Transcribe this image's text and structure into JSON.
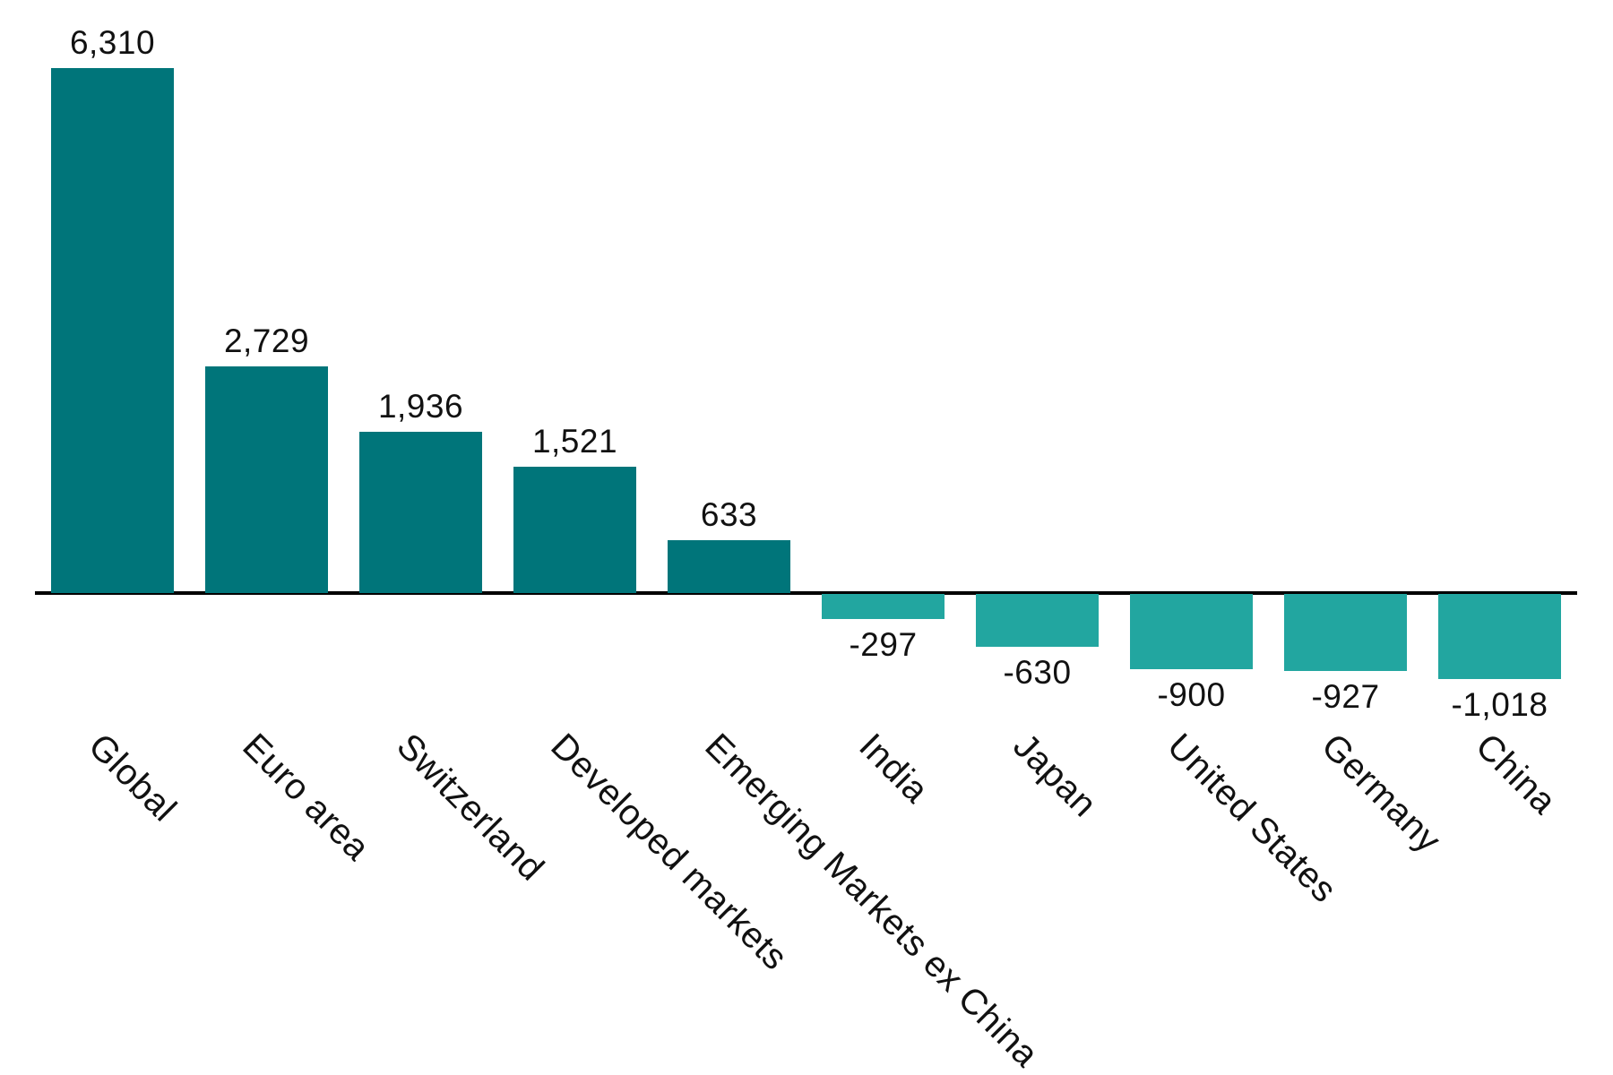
{
  "chart_data": {
    "type": "bar",
    "title": "",
    "xlabel": "",
    "ylabel": "",
    "categories": [
      "Global",
      "Euro area",
      "Switzerland",
      "Developed markets",
      "Emerging Markets ex China",
      "India",
      "Japan",
      "United States",
      "Germany",
      "China"
    ],
    "values": [
      6310,
      2729,
      1936,
      1521,
      633,
      -297,
      -630,
      -900,
      -927,
      -1018
    ],
    "value_labels": [
      "6,310",
      "2,729",
      "1,936",
      "1,521",
      "633",
      "-297",
      "-630",
      "-900",
      "-927",
      "-1,018"
    ],
    "ylim": [
      -1100,
      6500
    ],
    "grid": false,
    "legend": false,
    "category_label_rotation_deg": 45,
    "colors": {
      "bar_positive": "#00757A",
      "bar_negative": "#22A6A0",
      "axis_line": "#000000",
      "text": "#111111"
    }
  }
}
